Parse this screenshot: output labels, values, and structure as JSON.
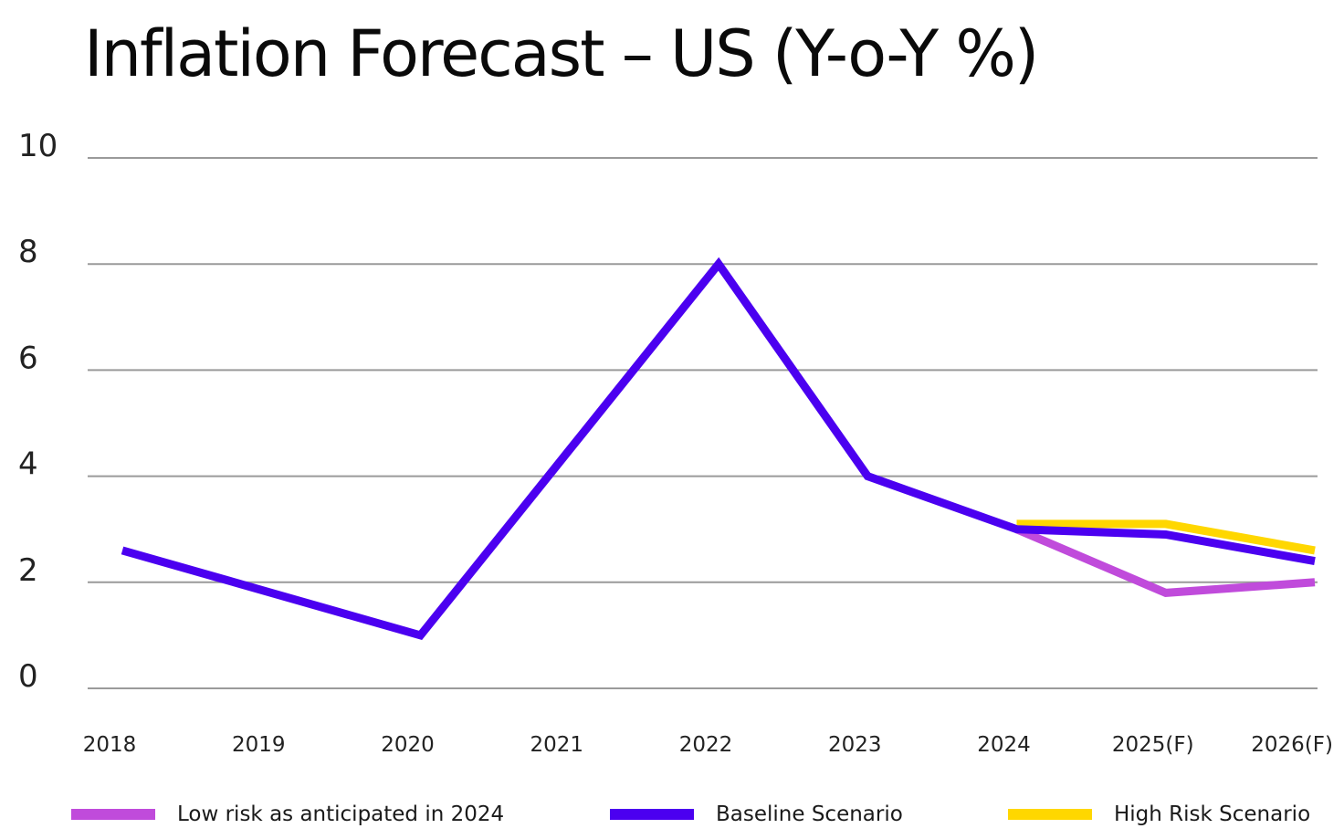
{
  "chart_data": {
    "type": "line",
    "title": "Inflation Forecast – US (Y-o-Y %)",
    "xlabel": "",
    "ylabel": "",
    "categories": [
      "2018",
      "2019",
      "2020",
      "2021",
      "2022",
      "2023",
      "2024",
      "2025(F)",
      "2026(F)"
    ],
    "ylim": [
      0,
      10
    ],
    "yticks": [
      "0",
      "2",
      "4",
      "6",
      "8",
      "10"
    ],
    "grid": true,
    "legend_position": "bottom",
    "series": [
      {
        "name": "High Risk Scenario",
        "color": "#FFD700",
        "values": [
          null,
          null,
          null,
          null,
          null,
          null,
          3.1,
          3.1,
          2.6
        ]
      },
      {
        "name": "Low risk as anticipated in 2024",
        "color": "#C04BDB",
        "values": [
          null,
          null,
          null,
          null,
          null,
          null,
          3.0,
          1.8,
          2.0
        ]
      },
      {
        "name": "Baseline Scenario",
        "color": "#4B00F0",
        "values": [
          2.6,
          1.8,
          1.0,
          4.5,
          8.0,
          4.0,
          3.0,
          2.9,
          2.4
        ]
      }
    ],
    "legend": [
      {
        "label": "Low risk as anticipated in 2024",
        "color": "#C04BDB"
      },
      {
        "label": "Baseline Scenario",
        "color": "#4B00F0"
      },
      {
        "label": "High Risk Scenario",
        "color": "#FFD700"
      }
    ]
  }
}
